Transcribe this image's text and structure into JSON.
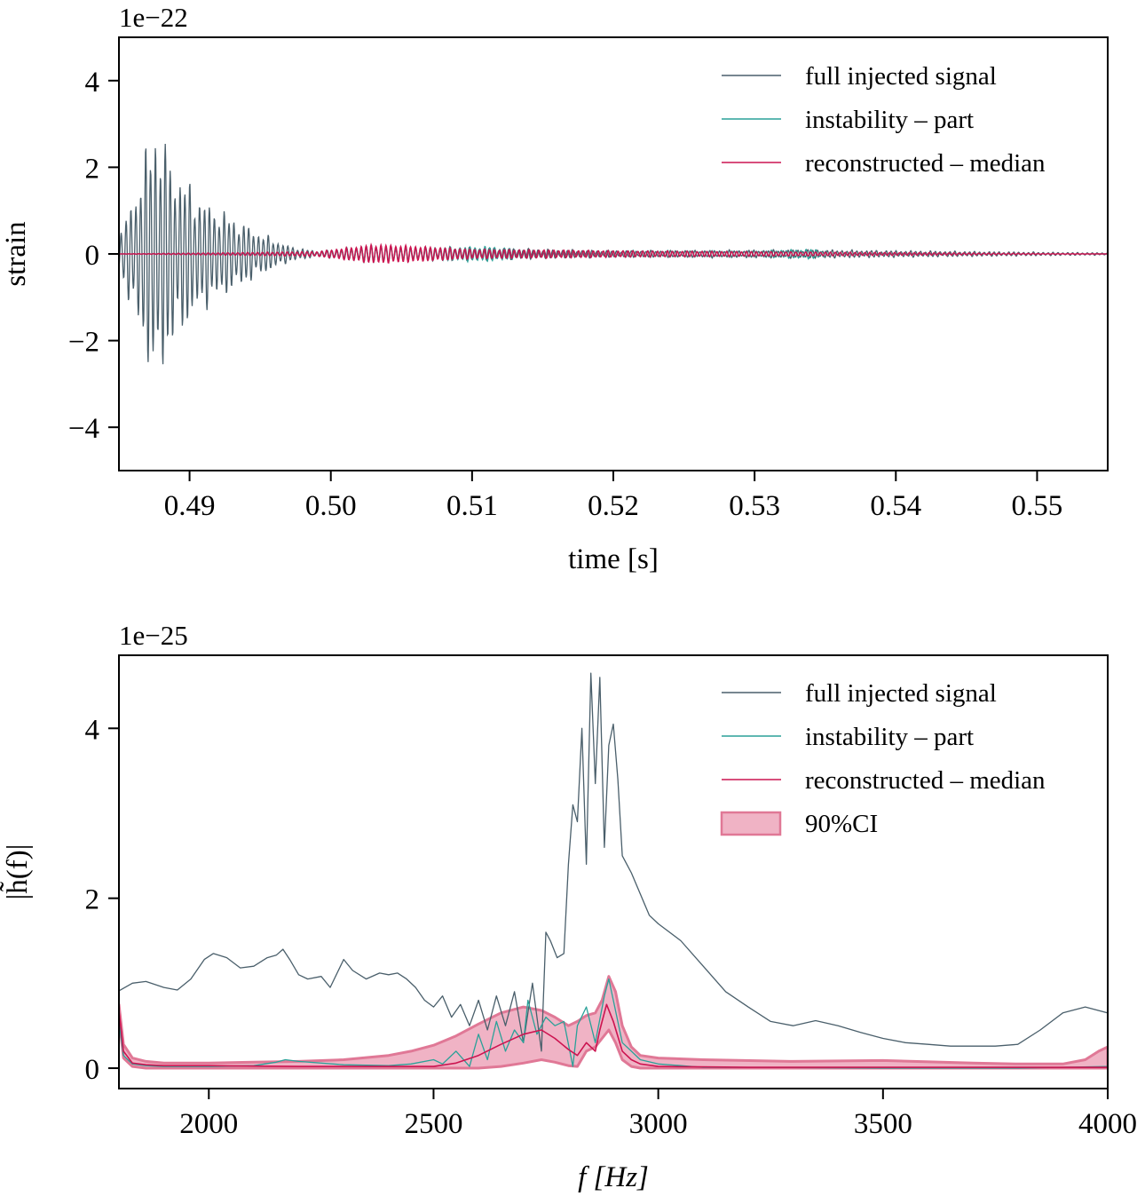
{
  "colors": {
    "full": "#4a5f6b",
    "instability": "#2aa198",
    "reconstructed": "#cc1450",
    "ci_fill": "#f0b3c5",
    "ci_edge": "#e07896"
  },
  "chart_data": [
    {
      "type": "line",
      "title": "",
      "xlabel": "time [s]",
      "ylabel": "strain",
      "offset_text": "1e−22",
      "xlim": [
        0.485,
        0.555
      ],
      "ylim": [
        -5,
        5
      ],
      "xticks": [
        0.49,
        0.5,
        0.51,
        0.52,
        0.53,
        0.54,
        0.55
      ],
      "xtick_labels": [
        "0.49",
        "0.50",
        "0.51",
        "0.52",
        "0.53",
        "0.54",
        "0.55"
      ],
      "yticks": [
        4,
        2,
        0,
        -2,
        -4
      ],
      "ytick_labels": [
        "4",
        "2",
        "0",
        "−2",
        "−4"
      ],
      "grid": false,
      "legend_position": "top-right",
      "series": [
        {
          "name": "full injected signal",
          "description_values": {
            "peak_time": 0.4875,
            "peak_max": 2.55,
            "peak_min": -2.4,
            "decay_end": 0.498
          },
          "envelope": [
            [
              0.485,
              0.3
            ],
            [
              0.4865,
              1.5
            ],
            [
              0.4875,
              2.5
            ],
            [
              0.489,
              1.6
            ],
            [
              0.491,
              1.0
            ],
            [
              0.493,
              0.7
            ],
            [
              0.495,
              0.4
            ],
            [
              0.497,
              0.15
            ],
            [
              0.499,
              0.05
            ],
            [
              0.503,
              0.15
            ],
            [
              0.51,
              0.12
            ],
            [
              0.52,
              0.06
            ],
            [
              0.534,
              0.08
            ],
            [
              0.555,
              0.02
            ]
          ]
        },
        {
          "name": "instability – part",
          "envelope": [
            [
              0.485,
              0.0
            ],
            [
              0.499,
              0.05
            ],
            [
              0.503,
              0.18
            ],
            [
              0.505,
              0.12
            ],
            [
              0.511,
              0.15
            ],
            [
              0.515,
              0.06
            ],
            [
              0.52,
              0.07
            ],
            [
              0.53,
              0.06
            ],
            [
              0.534,
              0.1
            ],
            [
              0.536,
              0.02
            ],
            [
              0.555,
              0.0
            ]
          ]
        },
        {
          "name": "reconstructed – median",
          "envelope": [
            [
              0.485,
              0.0
            ],
            [
              0.499,
              0.05
            ],
            [
              0.503,
              0.2
            ],
            [
              0.505,
              0.18
            ],
            [
              0.51,
              0.1
            ],
            [
              0.52,
              0.07
            ],
            [
              0.53,
              0.05
            ],
            [
              0.54,
              0.03
            ],
            [
              0.555,
              0.0
            ]
          ]
        }
      ]
    },
    {
      "type": "line",
      "title": "",
      "xlabel": "f [Hz]",
      "ylabel": "|h̃(f)|",
      "offset_text": "1e−25",
      "xlim": [
        1800,
        4000
      ],
      "ylim": [
        -0.24,
        4.86
      ],
      "xticks": [
        2000,
        2500,
        3000,
        3500,
        4000
      ],
      "xtick_labels": [
        "2000",
        "2500",
        "3000",
        "3500",
        "4000"
      ],
      "yticks": [
        4,
        2,
        0
      ],
      "ytick_labels": [
        "4",
        "2",
        "0"
      ],
      "grid": false,
      "legend_position": "top-right",
      "series": [
        {
          "name": "full injected signal",
          "x": [
            1800,
            1830,
            1860,
            1900,
            1930,
            1960,
            1990,
            2010,
            2040,
            2070,
            2100,
            2130,
            2150,
            2165,
            2180,
            2200,
            2220,
            2250,
            2270,
            2300,
            2320,
            2350,
            2380,
            2400,
            2420,
            2440,
            2460,
            2480,
            2500,
            2520,
            2540,
            2560,
            2580,
            2600,
            2620,
            2640,
            2660,
            2680,
            2700,
            2720,
            2740,
            2750,
            2760,
            2775,
            2790,
            2800,
            2810,
            2820,
            2830,
            2840,
            2850,
            2860,
            2870,
            2880,
            2890,
            2900,
            2910,
            2920,
            2930,
            2940,
            2960,
            2980,
            3000,
            3050,
            3100,
            3150,
            3200,
            3250,
            3300,
            3350,
            3400,
            3450,
            3500,
            3550,
            3600,
            3650,
            3700,
            3750,
            3800,
            3850,
            3900,
            3950,
            4000
          ],
          "y": [
            0.91,
            1.0,
            1.02,
            0.95,
            0.92,
            1.05,
            1.28,
            1.35,
            1.3,
            1.18,
            1.2,
            1.3,
            1.33,
            1.4,
            1.28,
            1.1,
            1.05,
            1.08,
            0.95,
            1.28,
            1.15,
            1.05,
            1.12,
            1.1,
            1.12,
            1.05,
            0.95,
            0.8,
            0.72,
            0.85,
            0.6,
            0.75,
            0.5,
            0.8,
            0.45,
            0.85,
            0.5,
            0.9,
            0.3,
            1.0,
            0.2,
            1.6,
            1.5,
            1.3,
            1.35,
            2.4,
            3.1,
            2.9,
            4.0,
            2.4,
            4.65,
            3.35,
            4.6,
            2.6,
            3.8,
            4.05,
            3.4,
            2.5,
            2.4,
            2.3,
            2.05,
            1.8,
            1.7,
            1.5,
            1.2,
            0.9,
            0.72,
            0.55,
            0.5,
            0.56,
            0.5,
            0.42,
            0.35,
            0.3,
            0.28,
            0.26,
            0.26,
            0.26,
            0.28,
            0.45,
            0.65,
            0.72,
            0.65
          ]
        },
        {
          "name": "instability – part",
          "x": [
            1800,
            1810,
            1830,
            1860,
            1900,
            2000,
            2100,
            2150,
            2170,
            2200,
            2300,
            2400,
            2450,
            2500,
            2520,
            2550,
            2580,
            2600,
            2620,
            2640,
            2660,
            2680,
            2700,
            2710,
            2730,
            2750,
            2770,
            2790,
            2810,
            2820,
            2840,
            2860,
            2880,
            2890,
            2900,
            2920,
            2940,
            2960,
            3000,
            3050,
            3100,
            3200,
            3500,
            3800,
            4000
          ],
          "y": [
            0.55,
            0.15,
            0.05,
            0.03,
            0.02,
            0.02,
            0.03,
            0.07,
            0.1,
            0.08,
            0.04,
            0.03,
            0.05,
            0.1,
            0.05,
            0.2,
            0.02,
            0.4,
            0.1,
            0.55,
            0.2,
            0.45,
            0.3,
            0.8,
            0.4,
            0.6,
            0.5,
            0.55,
            0.02,
            0.5,
            0.72,
            0.3,
            0.85,
            1.05,
            0.8,
            0.3,
            0.2,
            0.1,
            0.05,
            0.03,
            0.01,
            0.01,
            0.0,
            0.0,
            0.02
          ]
        },
        {
          "name": "reconstructed – median",
          "x": [
            1800,
            1810,
            1830,
            1860,
            1900,
            2000,
            2200,
            2400,
            2500,
            2550,
            2600,
            2650,
            2700,
            2740,
            2770,
            2800,
            2820,
            2840,
            2860,
            2870,
            2885,
            2900,
            2920,
            2940,
            2960,
            3000,
            3200,
            3500,
            3800,
            3950,
            4000
          ],
          "y": [
            0.68,
            0.2,
            0.06,
            0.04,
            0.03,
            0.03,
            0.02,
            0.02,
            0.02,
            0.06,
            0.15,
            0.28,
            0.4,
            0.45,
            0.35,
            0.22,
            0.15,
            0.3,
            0.2,
            0.45,
            0.75,
            0.55,
            0.2,
            0.1,
            0.05,
            0.02,
            0.01,
            0.01,
            0.01,
            0.01,
            0.01
          ]
        },
        {
          "name": "90%CI",
          "x": [
            1800,
            1810,
            1830,
            1860,
            1900,
            2000,
            2100,
            2200,
            2300,
            2400,
            2450,
            2500,
            2550,
            2600,
            2650,
            2700,
            2740,
            2770,
            2800,
            2820,
            2840,
            2860,
            2875,
            2890,
            2905,
            2920,
            2940,
            2960,
            3000,
            3100,
            3300,
            3500,
            3700,
            3800,
            3900,
            3950,
            3980,
            4000
          ],
          "upper": [
            0.75,
            0.28,
            0.12,
            0.08,
            0.06,
            0.06,
            0.07,
            0.08,
            0.1,
            0.15,
            0.2,
            0.27,
            0.38,
            0.52,
            0.65,
            0.72,
            0.68,
            0.6,
            0.5,
            0.55,
            0.62,
            0.65,
            0.8,
            1.08,
            0.9,
            0.5,
            0.25,
            0.15,
            0.12,
            0.1,
            0.08,
            0.09,
            0.06,
            0.05,
            0.05,
            0.1,
            0.2,
            0.25
          ],
          "lower": [
            0.6,
            0.12,
            0.02,
            0.0,
            0.0,
            0.0,
            0.0,
            0.0,
            0.0,
            0.0,
            0.0,
            0.0,
            0.0,
            0.0,
            0.02,
            0.06,
            0.1,
            0.07,
            0.03,
            0.02,
            0.2,
            0.25,
            0.35,
            0.45,
            0.3,
            0.1,
            0.02,
            0.0,
            0.0,
            0.0,
            0.0,
            0.0,
            0.0,
            0.0,
            0.0,
            0.0,
            0.0,
            0.0
          ]
        }
      ]
    }
  ]
}
